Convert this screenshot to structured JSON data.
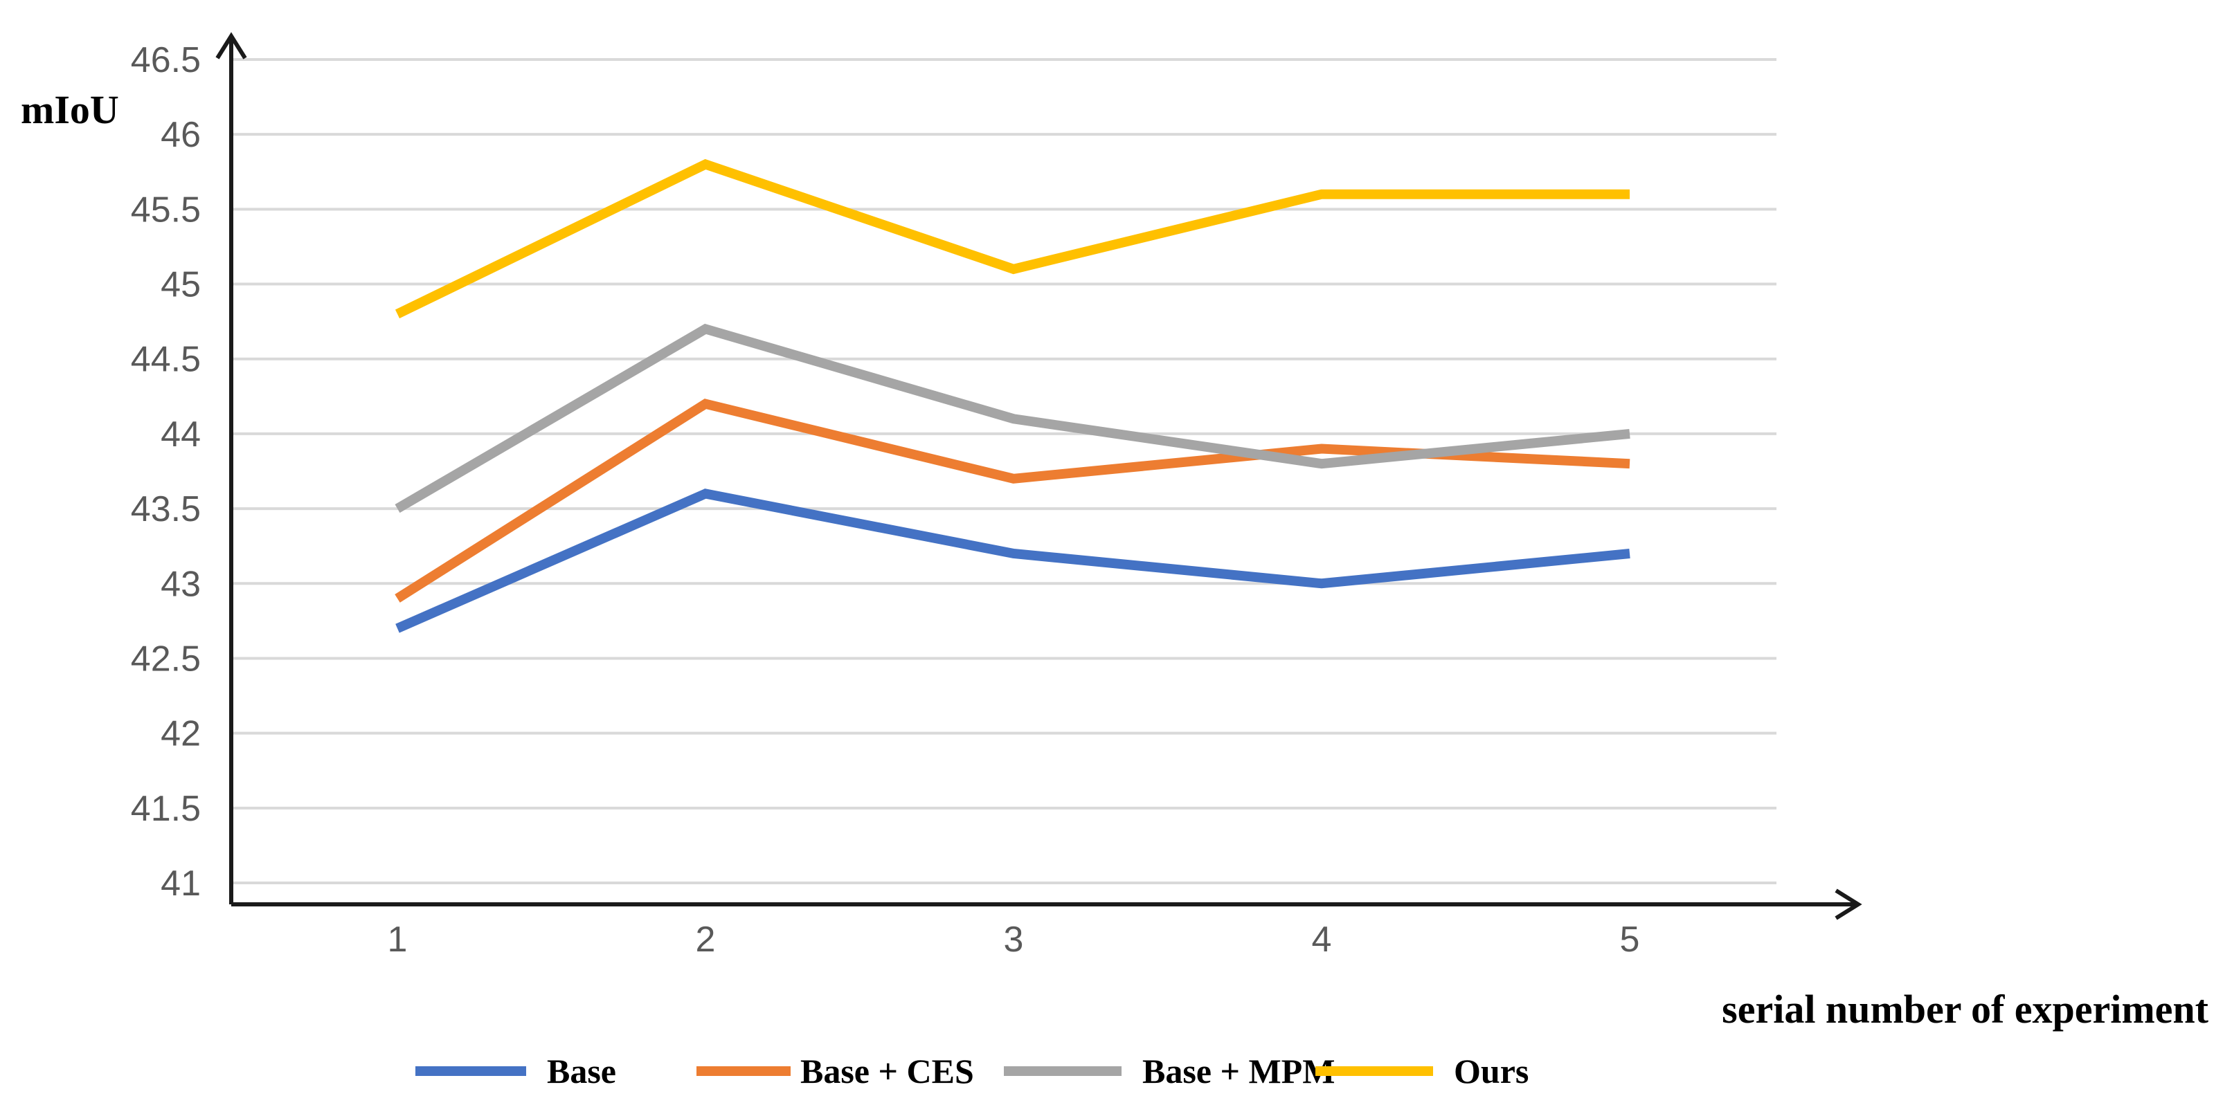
{
  "chart_data": {
    "type": "line",
    "title": "",
    "ylabel": "mIoU",
    "xlabel": "serial number of experiment",
    "categories": [
      "1",
      "2",
      "3",
      "4",
      "5"
    ],
    "ylim": [
      41,
      46.5
    ],
    "yticks": [
      41,
      41.5,
      42,
      42.5,
      43,
      43.5,
      44,
      44.5,
      45,
      45.5,
      46,
      46.5
    ],
    "ytick_labels": [
      "41",
      "41.5",
      "42",
      "42.5",
      "43",
      "43.5",
      "44",
      "44.5",
      "45",
      "45.5",
      "46",
      "46.5"
    ],
    "grid": true,
    "legend_position": "bottom",
    "series": [
      {
        "name": "Base",
        "color": "#4472c4",
        "values": [
          42.7,
          43.6,
          43.2,
          43.0,
          43.2
        ]
      },
      {
        "name": "Base + CES",
        "color": "#ed7d31",
        "values": [
          42.9,
          44.2,
          43.7,
          43.9,
          43.8
        ]
      },
      {
        "name": "Base + MPM",
        "color": "#a5a5a5",
        "values": [
          43.5,
          44.7,
          44.1,
          43.8,
          44.0
        ]
      },
      {
        "name": "Ours",
        "color": "#ffc000",
        "values": [
          44.8,
          45.8,
          45.1,
          45.6,
          45.6
        ]
      }
    ]
  }
}
